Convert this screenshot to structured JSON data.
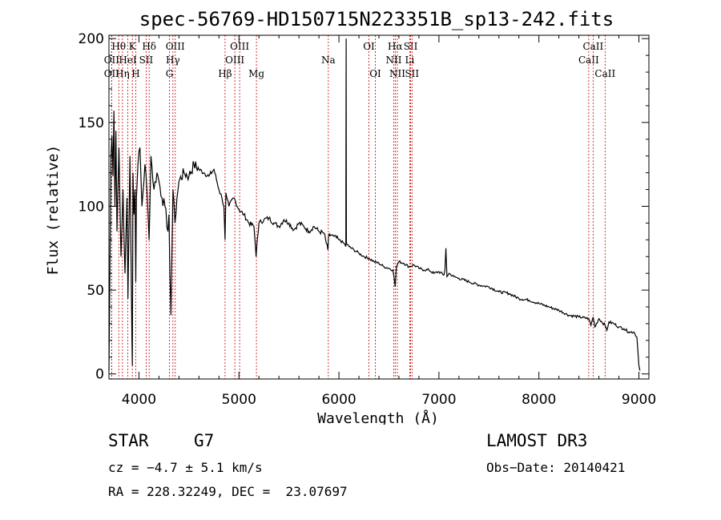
{
  "chart_data": {
    "type": "line",
    "title": "spec-56769-HD150715N223351B_sp13-242.fits",
    "xlabel": "Wavelength (Å)",
    "ylabel": "Flux (relative)",
    "xlim": [
      3700,
      9100
    ],
    "ylim": [
      -3,
      202
    ],
    "xticks": [
      4000,
      5000,
      6000,
      7000,
      8000,
      9000
    ],
    "yticks": [
      0,
      50,
      100,
      150,
      200
    ],
    "series": [
      {
        "name": "flux",
        "x": [
          3700,
          3710,
          3720,
          3730,
          3740,
          3750,
          3760,
          3770,
          3780,
          3800,
          3820,
          3840,
          3860,
          3880,
          3890,
          3910,
          3930,
          3934,
          3940,
          3950,
          3960,
          3968,
          3975,
          3990,
          4010,
          4030,
          4060,
          4080,
          4101,
          4120,
          4150,
          4180,
          4200,
          4230,
          4260,
          4290,
          4300,
          4310,
          4320,
          4340,
          4360,
          4380,
          4400,
          4450,
          4500,
          4550,
          4600,
          4650,
          4700,
          4750,
          4800,
          4830,
          4850,
          4861,
          4870,
          4900,
          4950,
          5000,
          5050,
          5100,
          5150,
          5172,
          5183,
          5200,
          5250,
          5300,
          5350,
          5400,
          5450,
          5500,
          5550,
          5600,
          5650,
          5700,
          5750,
          5800,
          5850,
          5890,
          5896,
          5920,
          5950,
          6000,
          6050,
          6069,
          6070,
          6072,
          6075,
          6100,
          6150,
          6200,
          6250,
          6300,
          6350,
          6400,
          6450,
          6500,
          6540,
          6563,
          6575,
          6600,
          6650,
          6700,
          6750,
          6800,
          6850,
          6900,
          6950,
          7000,
          7050,
          7060,
          7070,
          7080,
          7100,
          7150,
          7200,
          7300,
          7400,
          7500,
          7600,
          7700,
          7800,
          7900,
          8000,
          8100,
          8200,
          8300,
          8400,
          8498,
          8520,
          8542,
          8560,
          8600,
          8662,
          8680,
          8700,
          8750,
          8800,
          8850,
          8900,
          8950,
          8980,
          9000,
          9010
        ],
        "values": [
          2,
          62,
          130,
          142,
          118,
          157,
          100,
          145,
          85,
          135,
          70,
          110,
          60,
          105,
          45,
          130,
          20,
          5,
          120,
          95,
          110,
          55,
          105,
          125,
          135,
          100,
          125,
          110,
          80,
          130,
          110,
          120,
          115,
          105,
          100,
          85,
          95,
          60,
          35,
          110,
          90,
          105,
          115,
          120,
          118,
          125,
          122,
          120,
          118,
          122,
          110,
          105,
          100,
          80,
          108,
          100,
          105,
          98,
          95,
          90,
          88,
          70,
          80,
          90,
          92,
          93,
          90,
          88,
          92,
          90,
          86,
          90,
          88,
          85,
          88,
          85,
          84,
          74,
          82,
          83,
          82,
          80,
          78,
          76,
          118,
          200,
          78,
          76,
          74,
          72,
          70,
          69,
          67,
          66,
          64,
          63,
          62,
          52,
          64,
          67,
          66,
          64,
          65,
          63,
          62,
          62,
          60,
          61,
          59,
          62,
          75,
          58,
          60,
          58,
          57,
          55,
          53,
          52,
          49,
          48,
          45,
          44,
          42,
          40,
          38,
          35,
          34,
          33,
          29,
          34,
          28,
          33,
          29,
          26,
          31,
          30,
          28,
          27,
          25,
          25,
          22,
          5,
          2
        ]
      }
    ],
    "spectral_lines": [
      {
        "name": "OII",
        "wavelength": 3727,
        "row": 2
      },
      {
        "name": "Hθ",
        "wavelength": 3798,
        "row": 1
      },
      {
        "name": "OII",
        "wavelength": 3727,
        "row": 3
      },
      {
        "name": "Hη",
        "wavelength": 3835,
        "row": 3
      },
      {
        "name": "HeI",
        "wavelength": 3889,
        "row": 2
      },
      {
        "name": "K",
        "wavelength": 3934,
        "row": 1
      },
      {
        "name": "H",
        "wavelength": 3968,
        "row": 3
      },
      {
        "name": "SII",
        "wavelength": 4072,
        "row": 2
      },
      {
        "name": "Hδ",
        "wavelength": 4102,
        "row": 1
      },
      {
        "name": "Hγ",
        "wavelength": 4340,
        "row": 2
      },
      {
        "name": "OIII",
        "wavelength": 4363,
        "row": 1
      },
      {
        "name": "G",
        "wavelength": 4305,
        "row": 3
      },
      {
        "name": "Hβ",
        "wavelength": 4861,
        "row": 3
      },
      {
        "name": "OIII",
        "wavelength": 4959,
        "row": 2
      },
      {
        "name": "OIII",
        "wavelength": 5007,
        "row": 1
      },
      {
        "name": "Mg",
        "wavelength": 5175,
        "row": 3
      },
      {
        "name": "Na",
        "wavelength": 5894,
        "row": 2
      },
      {
        "name": "OI",
        "wavelength": 6300,
        "row": 1
      },
      {
        "name": "OI",
        "wavelength": 6364,
        "row": 3
      },
      {
        "name": "NII",
        "wavelength": 6548,
        "row": 2
      },
      {
        "name": "NII",
        "wavelength": 6584,
        "row": 3
      },
      {
        "name": "Hα",
        "wavelength": 6563,
        "row": 1
      },
      {
        "name": "SII",
        "wavelength": 6717,
        "row": 1
      },
      {
        "name": "SII",
        "wavelength": 6731,
        "row": 3
      },
      {
        "name": "Li",
        "wavelength": 6708,
        "row": 2
      },
      {
        "name": "CaII",
        "wavelength": 8498,
        "row": 2
      },
      {
        "name": "CaII",
        "wavelength": 8542,
        "row": 1
      },
      {
        "name": "CaII",
        "wavelength": 8662,
        "row": 3
      }
    ]
  },
  "info": {
    "object_class": "STAR",
    "subclass": "G7",
    "redshift": "cz = −4.7 ± 5.1 km/s",
    "coords": "RA = 228.32249, DEC =  23.07697",
    "survey": "LAMOST DR3",
    "obs_date": "Obs−Date: 20140421"
  },
  "colors": {
    "axis": "#000000",
    "line": "#000000",
    "marker": "#cc0000"
  }
}
